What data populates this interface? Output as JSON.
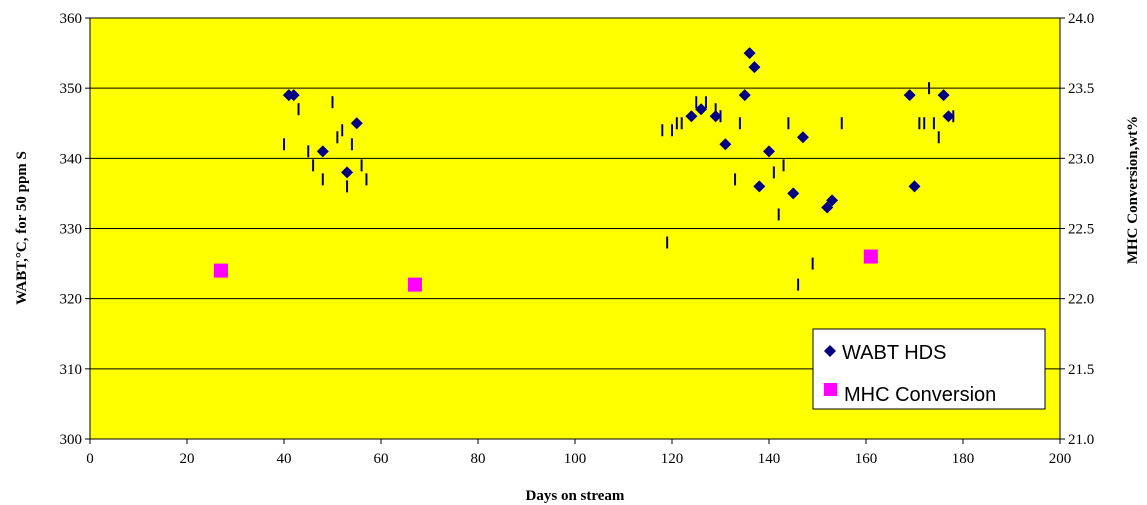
{
  "chart_data": {
    "type": "scatter",
    "xlabel": "Days on stream",
    "ylabel_left": "WABT,°C, for 50 ppm S",
    "ylabel_right": "MHC Conversion,wt%",
    "xlim": [
      0,
      200
    ],
    "ylim_left": [
      300,
      360
    ],
    "ylim_right": [
      21.0,
      24.0
    ],
    "x_ticks": [
      "0",
      "20",
      "40",
      "60",
      "80",
      "100",
      "120",
      "140",
      "160",
      "180",
      "200"
    ],
    "y_left_ticks": [
      "300",
      "310",
      "320",
      "330",
      "340",
      "350",
      "360"
    ],
    "y_right_ticks": [
      "21.0",
      "21.5",
      "22.0",
      "22.5",
      "23.0",
      "23.5",
      "24.0"
    ],
    "grid": true,
    "plot_background": "#ffff00",
    "legend_position": "bottom-right",
    "series": [
      {
        "name": "WABT HDS",
        "axis": "left",
        "marker": "diamond",
        "color": "#000080",
        "points": [
          [
            41,
            349
          ],
          [
            42,
            349
          ],
          [
            48,
            341
          ],
          [
            53,
            338
          ],
          [
            55,
            345
          ],
          [
            124,
            346
          ],
          [
            126,
            347
          ],
          [
            129,
            346
          ],
          [
            131,
            342
          ],
          [
            135,
            349
          ],
          [
            136,
            355
          ],
          [
            137,
            353
          ],
          [
            138,
            336
          ],
          [
            140,
            341
          ],
          [
            145,
            335
          ],
          [
            147,
            343
          ],
          [
            152,
            333
          ],
          [
            153,
            334
          ],
          [
            169,
            349
          ],
          [
            170,
            336
          ],
          [
            176,
            349
          ],
          [
            177,
            346
          ]
        ]
      },
      {
        "name": "MHC Conversion",
        "axis": "right",
        "marker": "square",
        "color": "#ff00ff",
        "points": [
          [
            27,
            22.2
          ],
          [
            67,
            22.1
          ],
          [
            161,
            22.3
          ]
        ]
      }
    ],
    "error_ticks": [
      [
        40,
        342
      ],
      [
        43,
        347
      ],
      [
        45,
        341
      ],
      [
        46,
        339
      ],
      [
        48,
        337
      ],
      [
        50,
        348
      ],
      [
        51,
        343
      ],
      [
        52,
        344
      ],
      [
        53,
        336
      ],
      [
        54,
        342
      ],
      [
        56,
        339
      ],
      [
        57,
        337
      ],
      [
        118,
        344
      ],
      [
        119,
        328
      ],
      [
        120,
        344
      ],
      [
        121,
        345
      ],
      [
        122,
        345
      ],
      [
        125,
        348
      ],
      [
        127,
        348
      ],
      [
        129,
        347
      ],
      [
        130,
        346
      ],
      [
        133,
        337
      ],
      [
        134,
        345
      ],
      [
        141,
        338
      ],
      [
        142,
        332
      ],
      [
        143,
        339
      ],
      [
        144,
        345
      ],
      [
        146,
        322
      ],
      [
        149,
        325
      ],
      [
        155,
        345
      ],
      [
        171,
        345
      ],
      [
        172,
        345
      ],
      [
        173,
        350
      ],
      [
        174,
        345
      ],
      [
        175,
        343
      ],
      [
        178,
        346
      ]
    ]
  }
}
